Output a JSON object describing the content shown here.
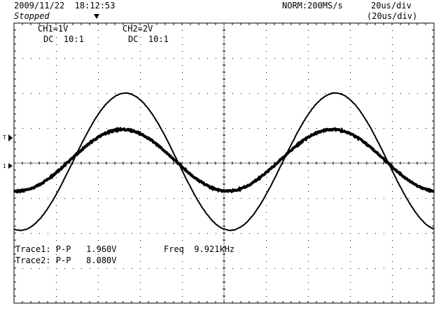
{
  "header": {
    "datetime": "2009/11/22  18:12:53",
    "status": "Stopped",
    "acq_mode": "NORM:200MS/s",
    "timebase": "20us/div",
    "timebase_secondary": "(20us/div)"
  },
  "channels": {
    "ch1_scale": "CH1=1V",
    "ch1_coupling": "DC  10:1",
    "ch2_scale": "CH2=2V",
    "ch2_coupling": "DC  10:1"
  },
  "markers": {
    "trigger_level_glyph": "T",
    "ground_glyph": "1"
  },
  "measurements": {
    "trace1": "Trace1: P-P   1.960V",
    "trace2": "Trace2: P-P   8.080V",
    "freq": "Freq  9.921kHz"
  },
  "colors": {
    "background": "#ffffff",
    "graticule": "#000000",
    "trace": "#000000"
  }
}
